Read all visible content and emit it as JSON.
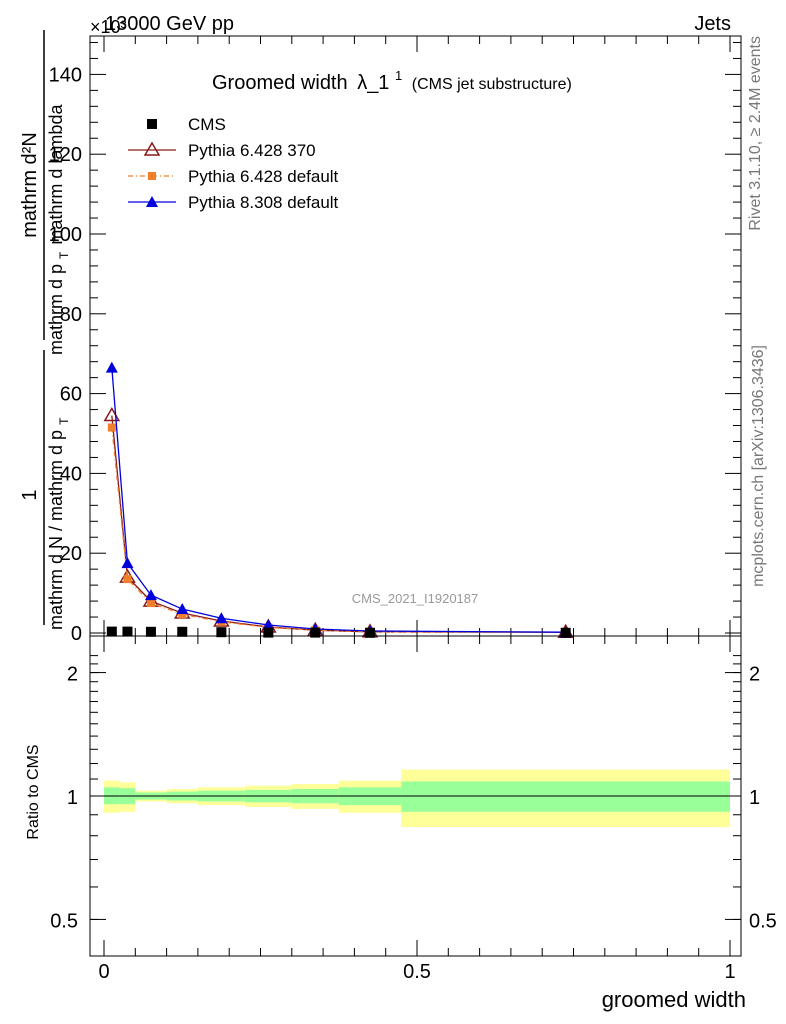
{
  "header": {
    "energy_label": "13000 GeV pp",
    "process_label": "Jets",
    "exponent_label": "×10³"
  },
  "side_labels": {
    "rivet": "Rivet 3.1.10, ≥ 2.4M events",
    "mcplots": "mcplots.cern.ch [arXiv:1306.3436]"
  },
  "chart_data": [
    {
      "type": "line",
      "title": "Groomed width",
      "title_symbol": "λ_1",
      "title_sup": "1",
      "subtitle": "(CMS jet substructure)",
      "watermark": "CMS_2021_I1920187",
      "ylabel_num": "mathrm d²N",
      "ylabel_denom_part1": "mathrm d p",
      "ylabel_denom_part2": "mathrm d lambda",
      "ylabel_sub": "T",
      "ylabel_norm_num": "1",
      "ylabel_norm_denom": "mathrm d N / mathrm d p",
      "ylabel_norm_sub": "T",
      "xlim": [
        0,
        1
      ],
      "ylim": [
        0,
        150
      ],
      "y_scale_note": "×10³",
      "yticks": [
        0,
        20,
        40,
        60,
        80,
        100,
        120,
        140
      ],
      "legend_position": "top-left",
      "series": [
        {
          "name": "CMS",
          "color": "#000000",
          "marker": "square",
          "x": [
            0.0125,
            0.0375,
            0.075,
            0.125,
            0.1875,
            0.2625,
            0.3375,
            0.425,
            0.7375
          ],
          "y": [
            0.35,
            0.35,
            0.3,
            0.3,
            0.2,
            0.1,
            0.1,
            0.05,
            0.05
          ]
        },
        {
          "name": "Pythia 6.428 370",
          "color": "#8b1a1a",
          "marker": "open-triangle",
          "x": [
            0.0125,
            0.0375,
            0.075,
            0.125,
            0.1875,
            0.2625,
            0.3375,
            0.425,
            0.7375
          ],
          "y": [
            54.5,
            14.0,
            8.0,
            5.0,
            3.0,
            1.5,
            0.7,
            0.3,
            0.2
          ]
        },
        {
          "name": "Pythia 6.428 default",
          "color": "#f07e2b",
          "marker": "filled-square",
          "x": [
            0.0125,
            0.0375,
            0.075,
            0.125,
            0.1875,
            0.2625,
            0.3375,
            0.425,
            0.7375
          ],
          "y": [
            51.5,
            13.5,
            7.5,
            4.7,
            2.8,
            1.4,
            0.7,
            0.3,
            0.2
          ]
        },
        {
          "name": "Pythia 8.308 default",
          "color": "#0000dd",
          "marker": "filled-triangle",
          "x": [
            0.0125,
            0.0375,
            0.075,
            0.125,
            0.1875,
            0.2625,
            0.3375,
            0.425,
            0.7375
          ],
          "y": [
            66.5,
            17.5,
            9.5,
            6.0,
            3.7,
            2.0,
            1.0,
            0.5,
            0.2
          ]
        }
      ]
    },
    {
      "type": "area",
      "ylabel": "Ratio to CMS",
      "xlabel": "groomed width",
      "xlim": [
        0,
        1
      ],
      "ylim": [
        0.4,
        2.3
      ],
      "y_scale": "log",
      "xticks": [
        0,
        0.5,
        1
      ],
      "xtick_labels": [
        "0",
        "0.5",
        "1"
      ],
      "yticks": [
        0.5,
        1,
        2
      ],
      "ytick_labels": [
        "0.5",
        "1",
        "2"
      ],
      "ref_line": 1,
      "bins": [
        {
          "lo": 0.0,
          "hi": 0.025,
          "inner": [
            0.955,
            1.05
          ],
          "outer": [
            0.91,
            1.09
          ]
        },
        {
          "lo": 0.025,
          "hi": 0.05,
          "inner": [
            0.955,
            1.045
          ],
          "outer": [
            0.915,
            1.08
          ]
        },
        {
          "lo": 0.05,
          "hi": 0.1,
          "inner": [
            0.98,
            1.02
          ],
          "outer": [
            0.97,
            1.03
          ]
        },
        {
          "lo": 0.1,
          "hi": 0.15,
          "inner": [
            0.975,
            1.025
          ],
          "outer": [
            0.96,
            1.04
          ]
        },
        {
          "lo": 0.15,
          "hi": 0.225,
          "inner": [
            0.97,
            1.03
          ],
          "outer": [
            0.95,
            1.05
          ]
        },
        {
          "lo": 0.225,
          "hi": 0.3,
          "inner": [
            0.965,
            1.035
          ],
          "outer": [
            0.94,
            1.06
          ]
        },
        {
          "lo": 0.3,
          "hi": 0.375,
          "inner": [
            0.96,
            1.04
          ],
          "outer": [
            0.93,
            1.07
          ]
        },
        {
          "lo": 0.375,
          "hi": 0.475,
          "inner": [
            0.95,
            1.05
          ],
          "outer": [
            0.91,
            1.09
          ]
        },
        {
          "lo": 0.475,
          "hi": 1.0,
          "inner": [
            0.915,
            1.085
          ],
          "outer": [
            0.84,
            1.16
          ]
        }
      ],
      "inner_color": "#99ff99",
      "outer_color": "#ffff99"
    }
  ]
}
